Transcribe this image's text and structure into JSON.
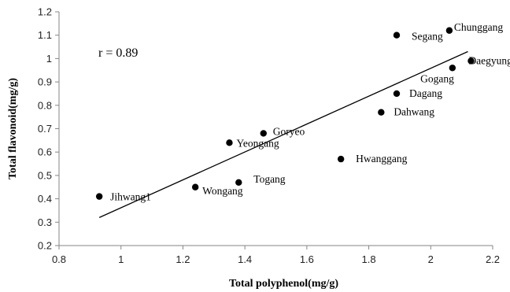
{
  "chart_data": {
    "type": "scatter",
    "xlabel": "Total  polyphenol(mg/g)",
    "ylabel": "Total  flavonoid(mg/g)",
    "xlim": [
      0.8,
      2.2
    ],
    "ylim": [
      0.2,
      1.2
    ],
    "x_ticks": [
      "0.8",
      "1",
      "1.2",
      "1.4",
      "1.6",
      "1.8",
      "2",
      "2.2"
    ],
    "y_ticks": [
      "0.2",
      "0.3",
      "0.4",
      "0.5",
      "0.6",
      "0.7",
      "0.8",
      "0.9",
      "1",
      "1.1",
      "1.2"
    ],
    "annotation": "r = 0.89",
    "grid": false,
    "points": [
      {
        "label": "Jihwang1",
        "x": 0.93,
        "y": 0.41
      },
      {
        "label": "Wongang",
        "x": 1.24,
        "y": 0.45
      },
      {
        "label": "Togang",
        "x": 1.38,
        "y": 0.47
      },
      {
        "label": "Yeongang",
        "x": 1.35,
        "y": 0.64
      },
      {
        "label": "Goryeo",
        "x": 1.46,
        "y": 0.68
      },
      {
        "label": "Hwanggang",
        "x": 1.71,
        "y": 0.57
      },
      {
        "label": "Dahwang",
        "x": 1.84,
        "y": 0.77
      },
      {
        "label": "Dagang",
        "x": 1.89,
        "y": 0.85
      },
      {
        "label": "Segang",
        "x": 1.89,
        "y": 1.1
      },
      {
        "label": "Chunggang",
        "x": 2.06,
        "y": 1.12
      },
      {
        "label": "Gogang",
        "x": 2.07,
        "y": 0.96
      },
      {
        "label": "Daegyung",
        "x": 2.13,
        "y": 0.99
      }
    ],
    "trendline": {
      "x": [
        0.93,
        2.12
      ],
      "y": [
        0.32,
        1.03
      ]
    }
  }
}
